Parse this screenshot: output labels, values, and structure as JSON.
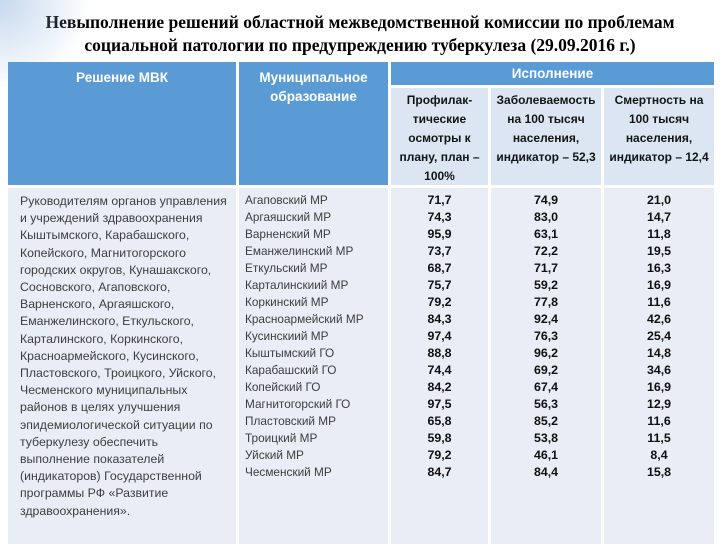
{
  "title": "Невыполнение решений областной межведомственной комиссии по проблемам социальной патологии по предупреждению туберкулеза (29.09.2016 г.)",
  "colors": {
    "header_blue": "#5B9BD5",
    "subheader_bg": "#DCE6F2",
    "body_bg": "#E9EDF5",
    "header_text": "#FFFFFF"
  },
  "table": {
    "headers": {
      "decision": "Решение МВК",
      "municipality": "Муниципальное образование",
      "execution": "Исполнение",
      "sub": {
        "exams": "Профилак-тические осмотры к плану, план – 100%",
        "incidence": "Заболеваемость на 100 тысяч населения, индикатор – 52,3",
        "mortality": "Смертность на 100 тысяч населения, индикатор – 12,4"
      }
    },
    "decision_text": "Руководителям органов управления и учреждений здравоохранения Кыштымского, Карабашского, Копейского, Магнитогорского городских округов, Кунашакского, Сосновского, Агаповского, Варненского, Аргаяшского, Еманжелинского, Еткульского, Карталинского, Коркинского, Красноармейского, Кусинского, Пластовского, Троицкого, Уйского, Чесменского муниципальных районов в целях улучшения эпидемиологической ситуации по туберкулезу обеспечить выполнение показателей (индикаторов) Государственной программы РФ «Развитие здравоохранения».",
    "rows": [
      {
        "municipality": "Агаповский МР",
        "exams": "71,7",
        "incidence": "74,9",
        "mortality": "21,0"
      },
      {
        "municipality": "Аргаяшский МР",
        "exams": "74,3",
        "incidence": "83,0",
        "mortality": "14,7"
      },
      {
        "municipality": "Варненский МР",
        "exams": "95,9",
        "incidence": "63,1",
        "mortality": "11,8"
      },
      {
        "municipality": "Еманжелинский МР",
        "exams": "73,7",
        "incidence": "72,2",
        "mortality": "19,5"
      },
      {
        "municipality": "Еткульский МР",
        "exams": "68,7",
        "incidence": "71,7",
        "mortality": "16,3"
      },
      {
        "municipality": "Карталинскиий МР",
        "exams": "75,7",
        "incidence": "59,2",
        "mortality": "16,9"
      },
      {
        "municipality": "Коркинский МР",
        "exams": "79,2",
        "incidence": "77,8",
        "mortality": "11,6"
      },
      {
        "municipality": "Красноармейский МР",
        "exams": "84,3",
        "incidence": "92,4",
        "mortality": "42,6"
      },
      {
        "municipality": "Кусинскиий МР",
        "exams": "97,4",
        "incidence": "76,3",
        "mortality": "25,4"
      },
      {
        "municipality": "Кыштымский ГО",
        "exams": "88,8",
        "incidence": "96,2",
        "mortality": "14,8"
      },
      {
        "municipality": "Карабашский ГО",
        "exams": "74,4",
        "incidence": "69,2",
        "mortality": "34,6"
      },
      {
        "municipality": "Копейский ГО",
        "exams": "84,2",
        "incidence": "67,4",
        "mortality": "16,9"
      },
      {
        "municipality": "Магнитогорский ГО",
        "exams": "97,5",
        "incidence": "56,3",
        "mortality": "12,9"
      },
      {
        "municipality": "Пластовский МР",
        "exams": "65,8",
        "incidence": "85,2",
        "mortality": "11,6"
      },
      {
        "municipality": "Троицкий МР",
        "exams": "59,8",
        "incidence": "53,8",
        "mortality": "11,5"
      },
      {
        "municipality": "Уйский МР",
        "exams": "79,2",
        "incidence": "46,1",
        "mortality": "8,4"
      },
      {
        "municipality": "Чесменский МР",
        "exams": "84,7",
        "incidence": "84,4",
        "mortality": "15,8"
      }
    ]
  }
}
